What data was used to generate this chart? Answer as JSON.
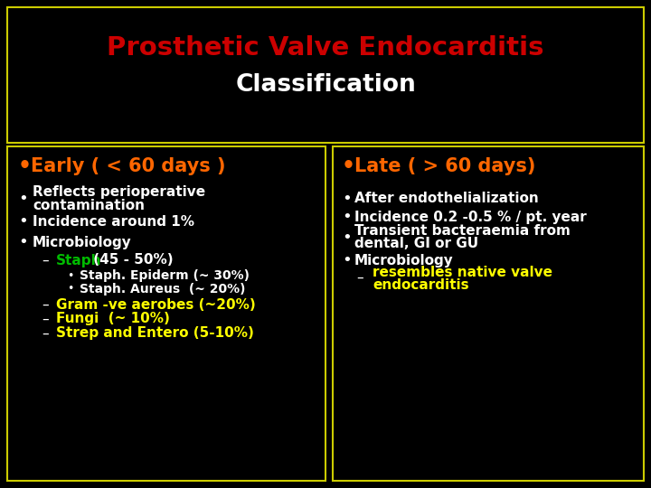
{
  "bg_color": "#000000",
  "border_color": "#cccc00",
  "title_line1": "Prosthetic Valve Endocarditis",
  "title_line1_color": "#cc0000",
  "title_line2": "Classification",
  "title_line2_color": "#ffffff",
  "left_header": "Early ( < 60 days )",
  "right_header": "Late ( > 60 days)",
  "header_color": "#ff6600",
  "white": "#ffffff",
  "green": "#00bb00",
  "yellow": "#ffff00",
  "fig_w": 7.2,
  "fig_h": 5.4,
  "dpi": 100
}
